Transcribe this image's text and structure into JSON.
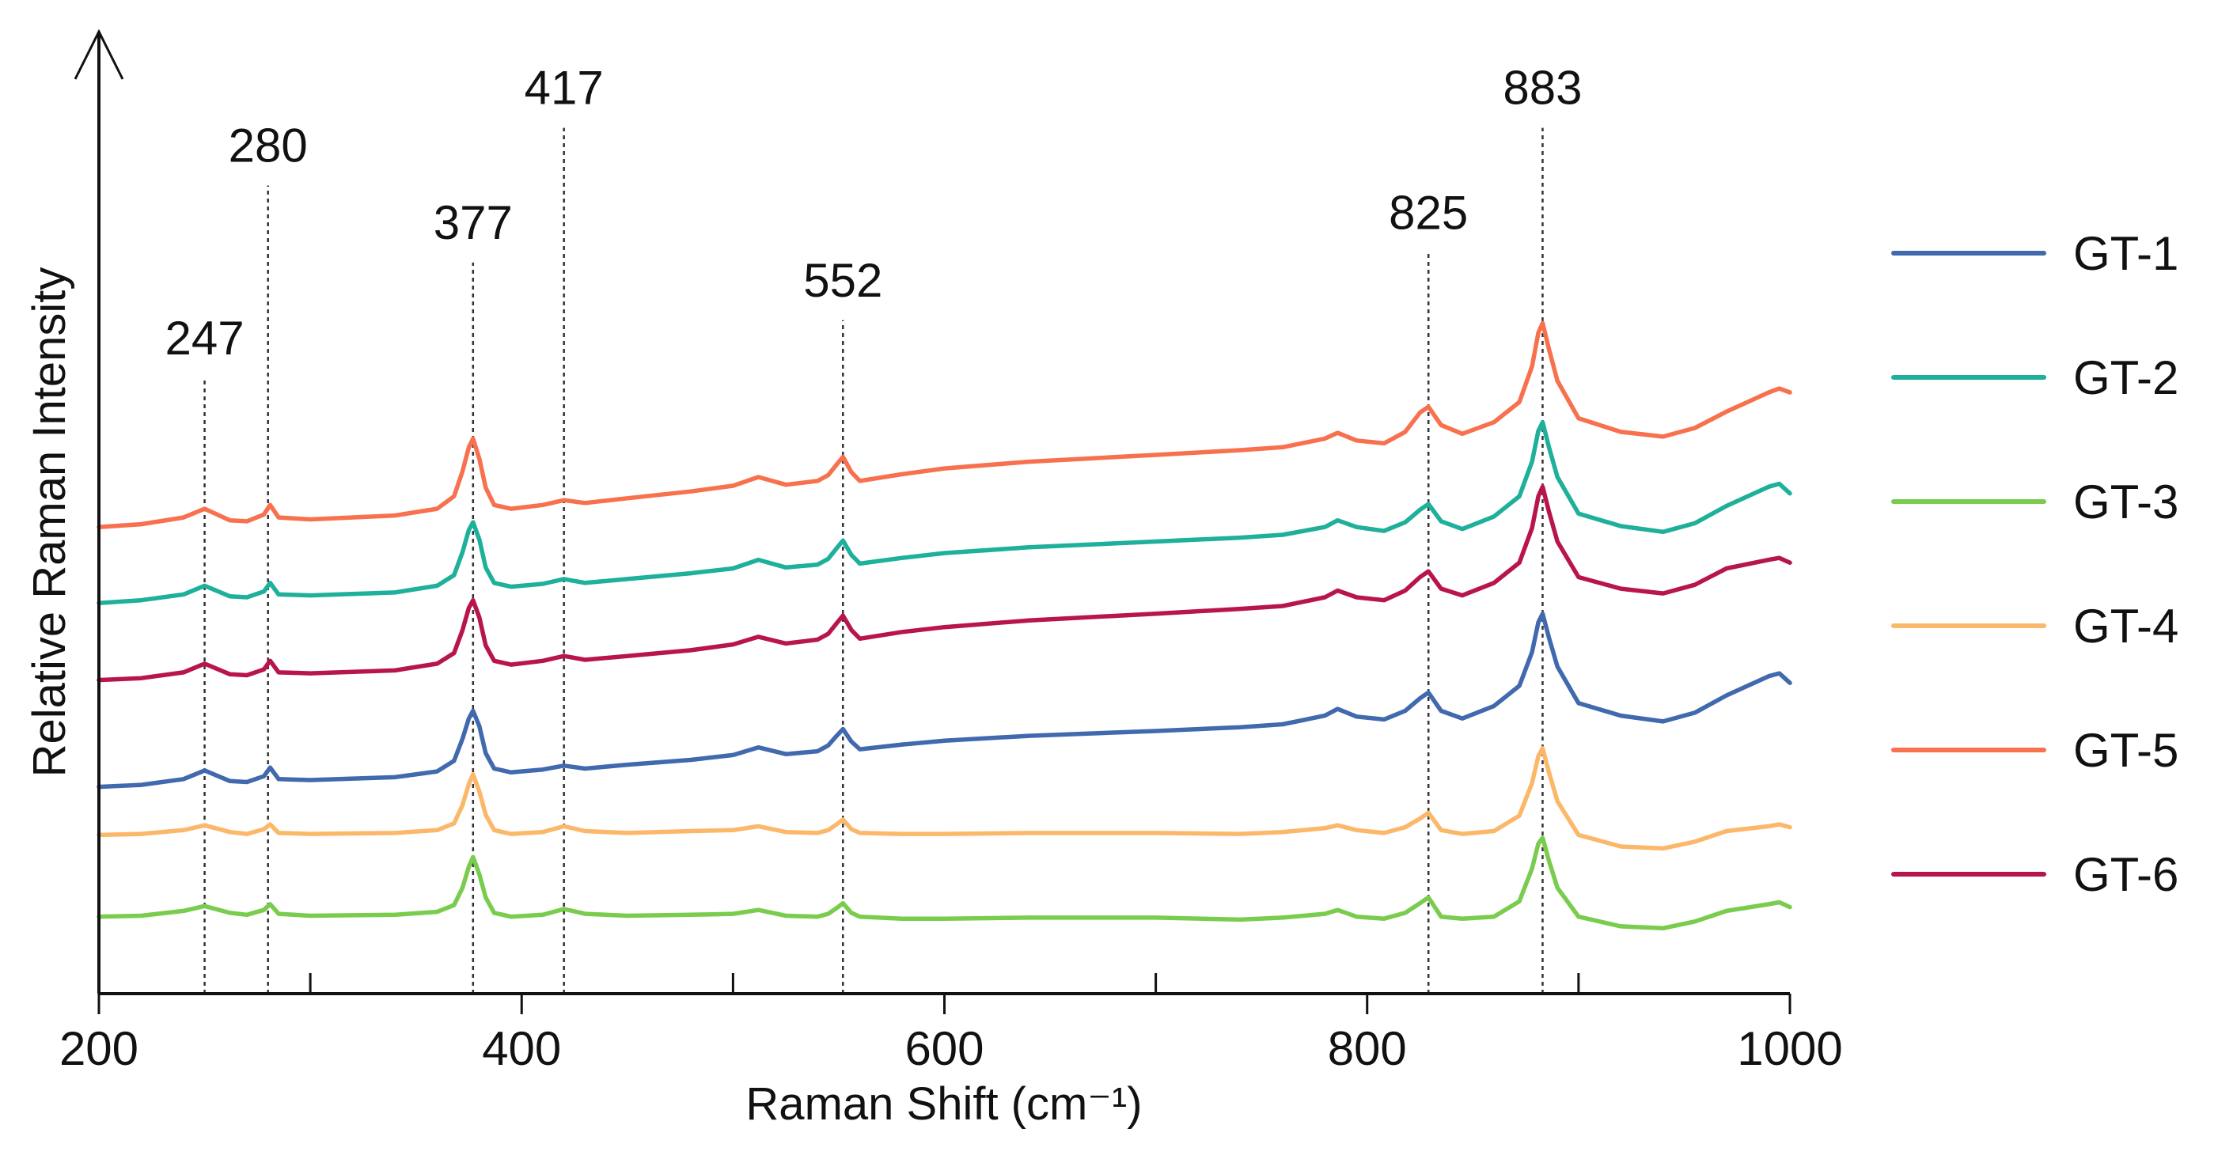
{
  "chart_data": {
    "type": "line",
    "title": "",
    "xlabel": "Raman Shift (cm⁻¹)",
    "ylabel": "Relative Raman Intensity",
    "xlim": [
      200,
      1000
    ],
    "ylim": [
      0,
      100
    ],
    "grid": false,
    "legend_position": "right",
    "x_ticks": [
      200,
      400,
      600,
      800,
      1000
    ],
    "x_tick_labels": [
      "200",
      "400",
      "600",
      "800",
      "1000"
    ],
    "x_minor_ticks": [
      300,
      500,
      700,
      900
    ],
    "peaks": [
      {
        "label": "247",
        "x": 250,
        "top": 64
      },
      {
        "label": "280",
        "x": 280,
        "top": 84
      },
      {
        "label": "377",
        "x": 377,
        "top": 76
      },
      {
        "label": "417",
        "x": 420,
        "top": 90
      },
      {
        "label": "552",
        "x": 552,
        "top": 70
      },
      {
        "label": "825",
        "x": 829,
        "top": 77
      },
      {
        "label": "883",
        "x": 883,
        "top": 90
      }
    ],
    "series": [
      {
        "name": "GT-1",
        "color": "#4169AE",
        "x": [
          200,
          220,
          240,
          250,
          262,
          270,
          278,
          281,
          285,
          300,
          340,
          360,
          368,
          372,
          375,
          377,
          380,
          383,
          387,
          395,
          410,
          420,
          430,
          450,
          480,
          500,
          512,
          525,
          540,
          545,
          549,
          552,
          556,
          560,
          580,
          600,
          640,
          700,
          740,
          760,
          780,
          786,
          795,
          808,
          818,
          825,
          829,
          835,
          845,
          860,
          872,
          878,
          881,
          883,
          886,
          890,
          900,
          920,
          940,
          955,
          970,
          990,
          995,
          1000
        ],
        "y": [
          21.5,
          21.7,
          22.3,
          23.2,
          22.1,
          22.0,
          22.6,
          23.5,
          22.3,
          22.2,
          22.5,
          23.1,
          24.2,
          26.5,
          28.6,
          29.4,
          27.8,
          25.0,
          23.4,
          23.0,
          23.3,
          23.7,
          23.4,
          23.8,
          24.3,
          24.8,
          25.6,
          24.9,
          25.2,
          25.8,
          26.8,
          27.5,
          26.2,
          25.4,
          25.9,
          26.3,
          26.8,
          27.3,
          27.7,
          28.0,
          28.9,
          29.6,
          28.8,
          28.5,
          29.4,
          30.7,
          31.3,
          29.4,
          28.6,
          29.9,
          32.0,
          35.5,
          38.6,
          39.5,
          37.0,
          34.0,
          30.2,
          28.9,
          28.3,
          29.2,
          31.0,
          33.0,
          33.3,
          32.3
        ]
      },
      {
        "name": "GT-2",
        "color": "#1EB09B",
        "x": [
          200,
          220,
          240,
          250,
          262,
          270,
          278,
          281,
          285,
          300,
          340,
          360,
          368,
          372,
          375,
          377,
          380,
          383,
          387,
          395,
          410,
          420,
          430,
          450,
          480,
          500,
          512,
          525,
          540,
          545,
          549,
          552,
          556,
          560,
          580,
          600,
          640,
          700,
          740,
          760,
          780,
          786,
          795,
          808,
          818,
          825,
          829,
          835,
          845,
          860,
          872,
          878,
          881,
          883,
          886,
          890,
          900,
          920,
          940,
          955,
          970,
          990,
          995,
          1000
        ],
        "y": [
          40.6,
          40.9,
          41.5,
          42.4,
          41.3,
          41.2,
          41.8,
          42.7,
          41.5,
          41.4,
          41.7,
          42.4,
          43.5,
          45.9,
          48.2,
          49.0,
          47.2,
          44.3,
          42.7,
          42.3,
          42.6,
          43.1,
          42.7,
          43.1,
          43.7,
          44.2,
          45.1,
          44.3,
          44.6,
          45.2,
          46.3,
          47.1,
          45.6,
          44.7,
          45.3,
          45.8,
          46.4,
          47.0,
          47.4,
          47.7,
          48.5,
          49.2,
          48.5,
          48.1,
          49.0,
          50.3,
          50.9,
          49.1,
          48.3,
          49.6,
          51.7,
          55.3,
          58.5,
          59.4,
          56.8,
          53.7,
          49.9,
          48.6,
          48.0,
          48.9,
          50.7,
          52.7,
          53.0,
          52.0
        ]
      },
      {
        "name": "GT-3",
        "color": "#7ACC4E",
        "x": [
          200,
          220,
          240,
          250,
          262,
          270,
          278,
          281,
          285,
          300,
          340,
          360,
          368,
          372,
          375,
          377,
          380,
          383,
          387,
          395,
          410,
          420,
          430,
          450,
          480,
          500,
          512,
          525,
          540,
          545,
          549,
          552,
          556,
          560,
          580,
          600,
          640,
          700,
          740,
          760,
          780,
          786,
          795,
          808,
          818,
          825,
          829,
          835,
          845,
          860,
          872,
          878,
          881,
          883,
          886,
          890,
          900,
          920,
          940,
          955,
          970,
          990,
          995,
          1000
        ],
        "y": [
          8.0,
          8.1,
          8.6,
          9.1,
          8.4,
          8.2,
          8.7,
          9.3,
          8.3,
          8.1,
          8.2,
          8.5,
          9.2,
          11.0,
          13.2,
          14.2,
          12.4,
          10.0,
          8.4,
          8.0,
          8.2,
          8.8,
          8.3,
          8.1,
          8.2,
          8.3,
          8.7,
          8.1,
          8.0,
          8.3,
          8.9,
          9.4,
          8.4,
          8.0,
          7.8,
          7.8,
          7.9,
          7.9,
          7.7,
          7.9,
          8.3,
          8.7,
          8.0,
          7.8,
          8.4,
          9.4,
          10.0,
          8.0,
          7.8,
          8.0,
          9.6,
          13.0,
          15.6,
          16.2,
          13.8,
          11.0,
          8.0,
          7.0,
          6.8,
          7.5,
          8.6,
          9.3,
          9.5,
          9.0
        ]
      },
      {
        "name": "GT-4",
        "color": "#FCB86A",
        "x": [
          200,
          220,
          240,
          250,
          262,
          270,
          278,
          281,
          285,
          300,
          340,
          360,
          368,
          372,
          375,
          377,
          380,
          383,
          387,
          395,
          410,
          420,
          430,
          450,
          480,
          500,
          512,
          525,
          540,
          545,
          549,
          552,
          556,
          560,
          580,
          600,
          640,
          700,
          740,
          760,
          780,
          786,
          795,
          808,
          818,
          825,
          829,
          835,
          845,
          860,
          872,
          878,
          881,
          883,
          886,
          890,
          900,
          920,
          940,
          955,
          970,
          990,
          995,
          1000
        ],
        "y": [
          16.5,
          16.6,
          17.0,
          17.5,
          16.8,
          16.6,
          17.1,
          17.6,
          16.7,
          16.6,
          16.7,
          17.0,
          17.7,
          19.6,
          21.8,
          22.8,
          21.0,
          18.6,
          17.0,
          16.6,
          16.8,
          17.4,
          16.9,
          16.7,
          16.9,
          17.0,
          17.4,
          16.8,
          16.7,
          17.0,
          17.6,
          18.1,
          17.1,
          16.7,
          16.6,
          16.6,
          16.7,
          16.7,
          16.6,
          16.8,
          17.2,
          17.5,
          17.0,
          16.7,
          17.3,
          18.2,
          18.8,
          17.0,
          16.6,
          16.9,
          18.5,
          21.9,
          24.7,
          25.5,
          23.0,
          20.0,
          16.5,
          15.3,
          15.1,
          15.8,
          16.9,
          17.4,
          17.6,
          17.3
        ]
      },
      {
        "name": "GT-5",
        "color": "#F8714F",
        "x": [
          200,
          220,
          240,
          250,
          262,
          270,
          278,
          281,
          285,
          300,
          340,
          360,
          368,
          372,
          375,
          377,
          380,
          383,
          387,
          395,
          410,
          420,
          430,
          450,
          480,
          500,
          512,
          525,
          540,
          545,
          549,
          552,
          556,
          560,
          580,
          600,
          640,
          700,
          740,
          760,
          780,
          786,
          795,
          808,
          818,
          825,
          829,
          835,
          845,
          860,
          872,
          878,
          881,
          883,
          886,
          890,
          900,
          920,
          940,
          955,
          970,
          990,
          995,
          1000
        ],
        "y": [
          48.5,
          48.8,
          49.5,
          50.4,
          49.2,
          49.1,
          49.8,
          50.8,
          49.5,
          49.3,
          49.7,
          50.4,
          51.7,
          54.3,
          56.8,
          57.7,
          55.6,
          52.6,
          50.8,
          50.4,
          50.8,
          51.3,
          51.0,
          51.5,
          52.2,
          52.8,
          53.7,
          52.9,
          53.3,
          53.9,
          55.0,
          55.8,
          54.2,
          53.3,
          54.0,
          54.6,
          55.3,
          56.0,
          56.5,
          56.8,
          57.7,
          58.3,
          57.5,
          57.2,
          58.4,
          60.4,
          61.0,
          59.1,
          58.2,
          59.4,
          61.5,
          65.2,
          68.7,
          69.7,
          67.0,
          63.7,
          59.8,
          58.4,
          57.9,
          58.8,
          60.5,
          62.5,
          62.9,
          62.5
        ]
      },
      {
        "name": "GT-6",
        "color": "#B8164A",
        "x": [
          200,
          220,
          240,
          250,
          262,
          270,
          278,
          281,
          285,
          300,
          340,
          360,
          368,
          372,
          375,
          377,
          380,
          383,
          387,
          395,
          410,
          420,
          430,
          450,
          480,
          500,
          512,
          525,
          540,
          545,
          549,
          552,
          556,
          560,
          580,
          600,
          640,
          700,
          740,
          760,
          780,
          786,
          795,
          808,
          818,
          825,
          829,
          835,
          845,
          860,
          872,
          878,
          881,
          883,
          886,
          890,
          900,
          920,
          940,
          955,
          970,
          990,
          995,
          1000
        ],
        "y": [
          32.6,
          32.8,
          33.4,
          34.3,
          33.2,
          33.1,
          33.7,
          34.6,
          33.4,
          33.3,
          33.6,
          34.3,
          35.4,
          37.8,
          40.1,
          40.9,
          39.1,
          36.2,
          34.6,
          34.2,
          34.6,
          35.1,
          34.7,
          35.1,
          35.7,
          36.3,
          37.1,
          36.4,
          36.8,
          37.4,
          38.5,
          39.3,
          37.8,
          36.9,
          37.6,
          38.1,
          38.8,
          39.5,
          40.0,
          40.3,
          41.2,
          41.9,
          41.2,
          40.9,
          41.9,
          43.3,
          43.9,
          42.1,
          41.4,
          42.7,
          44.8,
          48.4,
          51.7,
          52.7,
          50.1,
          47.0,
          43.3,
          42.1,
          41.6,
          42.5,
          44.2,
          45.1,
          45.3,
          44.8
        ]
      }
    ]
  }
}
